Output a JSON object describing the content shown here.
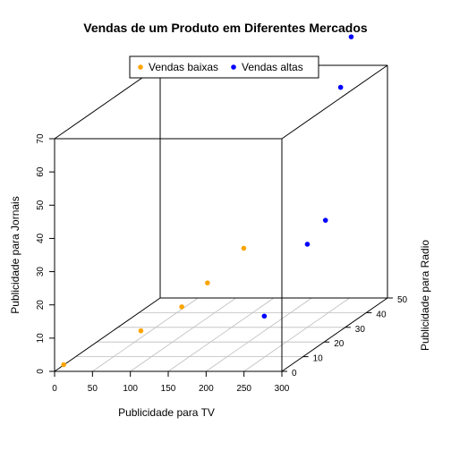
{
  "chart_data": {
    "type": "scatter3d",
    "title": "Vendas de um Produto em Diferentes Mercados",
    "xlabel": "Publicidade para TV",
    "ylabel": "Publicidade para Radio",
    "zlabel": "Publicidade para Jornais",
    "xlim": [
      0,
      300
    ],
    "ylim": [
      0,
      50
    ],
    "zlim": [
      0,
      70
    ],
    "x_ticks": [
      0,
      50,
      100,
      150,
      200,
      250,
      300
    ],
    "y_ticks": [
      0,
      10,
      20,
      30,
      40,
      50
    ],
    "z_ticks": [
      0,
      10,
      20,
      30,
      40,
      50,
      60,
      70
    ],
    "grid": "bottom-plane",
    "legend_position": "top-center",
    "series": [
      {
        "name": "Vendas baixas",
        "color": "#FFA500",
        "points": [
          {
            "x": 12,
            "y": 0,
            "z": 2
          },
          {
            "x": 100,
            "y": 5,
            "z": 10
          },
          {
            "x": 140,
            "y": 10,
            "z": 15
          },
          {
            "x": 160,
            "y": 15,
            "z": 20
          },
          {
            "x": 180,
            "y": 25,
            "z": 26
          }
        ]
      },
      {
        "name": "Vendas altas",
        "color": "#0000FF",
        "points": [
          {
            "x": 235,
            "y": 15,
            "z": 10
          },
          {
            "x": 250,
            "y": 30,
            "z": 25
          },
          {
            "x": 260,
            "y": 35,
            "z": 30
          },
          {
            "x": 280,
            "y": 35,
            "z": 70
          },
          {
            "x": 280,
            "y": 40,
            "z": 83
          }
        ]
      }
    ]
  }
}
